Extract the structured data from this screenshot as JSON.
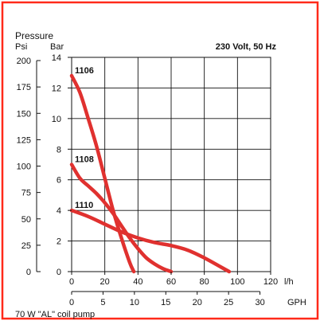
{
  "chart_data": {
    "type": "line",
    "top_label": "Pressure",
    "psi_unit": "Psi",
    "bar_unit": "Bar",
    "condition_label": "230 Volt, 50 Hz",
    "lh_unit": "l/h",
    "gph_unit": "GPH",
    "caption": "70 W \"AL\" coil pump",
    "x_lh_range": [
      0,
      120
    ],
    "x_lh_ticks": [
      "0",
      "20",
      "40",
      "60",
      "80",
      "100",
      "120"
    ],
    "x_gph_ticks": [
      "0",
      "5",
      "10",
      "15",
      "20",
      "25",
      "30"
    ],
    "y_bar_range": [
      0,
      14
    ],
    "y_bar_ticks": [
      "0",
      "2",
      "4",
      "6",
      "8",
      "10",
      "12",
      "14"
    ],
    "y_psi_ticks": [
      "0",
      "25",
      "50",
      "75",
      "100",
      "125",
      "150",
      "175",
      "200"
    ],
    "grid": true,
    "series": [
      {
        "name": "1106",
        "color": "#e0312f",
        "x": [
          0,
          5,
          10,
          15,
          20,
          25,
          30,
          35,
          37.5
        ],
        "y": [
          12.8,
          11.7,
          10.0,
          8.2,
          6.1,
          4.0,
          2.2,
          0.6,
          0.0
        ]
      },
      {
        "name": "1108",
        "color": "#e0312f",
        "x": [
          0,
          5,
          10,
          15,
          20,
          25,
          30,
          35,
          40,
          45,
          50,
          55,
          60
        ],
        "y": [
          7.0,
          6.1,
          5.6,
          5.1,
          4.5,
          3.8,
          3.0,
          2.2,
          1.5,
          0.9,
          0.5,
          0.2,
          0.0
        ]
      },
      {
        "name": "1110",
        "color": "#e0312f",
        "x": [
          0,
          10,
          20,
          30,
          40,
          50,
          60,
          70,
          80,
          90,
          95
        ],
        "y": [
          4.0,
          3.6,
          3.1,
          2.6,
          2.2,
          1.9,
          1.7,
          1.4,
          0.9,
          0.3,
          0.0
        ]
      }
    ]
  }
}
